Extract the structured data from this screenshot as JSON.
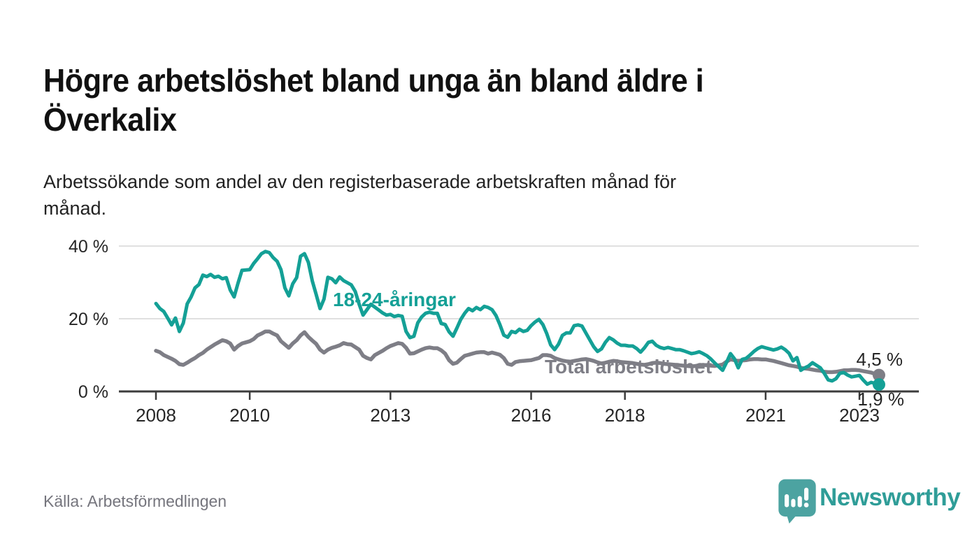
{
  "header": {
    "title": "Högre arbetslöshet bland unga än bland äldre i Överkalix",
    "title_lines": [
      "Högre arbetslöshet bland unga än bland äldre i",
      "Överkalix"
    ],
    "subtitle": "Arbetssökande som andel av den registerbaserade arbetskraften månad för månad.",
    "subtitle_lines": [
      "Arbetssökande som andel av den registerbaserade arbetskraften månad för",
      "månad."
    ]
  },
  "footer": {
    "source": "Källa: Arbetsförmedlingen",
    "brand": "Newsworthy"
  },
  "colors": {
    "young_line": "#14a096",
    "total_line": "#7e7e86",
    "axis": "#3c3c3c",
    "gridline": "#e0e0e0",
    "tick_text": "#262626",
    "logo_icon": "#4ca3a1",
    "logo_text": "#2f9d98"
  },
  "chart_data": {
    "type": "line",
    "title": "Högre arbetslöshet bland unga än bland äldre i Överkalix",
    "subtitle": "Arbetssökande som andel av den registerbaserade arbetskraften månad för månad.",
    "x_unit": "månad (monthly)",
    "x_start": "2008-01",
    "x_end": "2023-06",
    "x_step_months": 1,
    "xticks": [
      2008,
      2010,
      2013,
      2016,
      2018,
      2021,
      2023
    ],
    "yticks": [
      0,
      20,
      40
    ],
    "ytick_labels": [
      "0 %",
      "20 %",
      "40 %"
    ],
    "ylim": [
      0,
      43
    ],
    "grid": "horizontal",
    "legend_position": "inline-labels",
    "series": [
      {
        "name": "18-24-åringar",
        "color": "#14a096",
        "end_label": "1,9 %",
        "end_value": 1.9,
        "values": [
          24.2,
          22.8,
          22.0,
          20.2,
          18.3,
          20.2,
          16.5,
          18.8,
          24.1,
          26.0,
          28.5,
          29.4,
          32.0,
          31.6,
          32.2,
          31.4,
          31.7,
          31.0,
          31.3,
          27.9,
          26.0,
          29.8,
          33.3,
          33.4,
          33.5,
          35.2,
          36.5,
          37.9,
          38.5,
          38.2,
          36.8,
          35.8,
          33.5,
          28.5,
          26.3,
          29.6,
          31.3,
          37.2,
          37.9,
          35.5,
          30.4,
          26.7,
          22.8,
          25.4,
          31.4,
          31.0,
          29.9,
          31.5,
          30.5,
          29.9,
          29.3,
          27.5,
          24.0,
          21.0,
          22.5,
          24.0,
          23.2,
          22.4,
          21.6,
          21.0,
          21.2,
          20.6,
          20.9,
          20.7,
          16.5,
          14.8,
          15.2,
          18.9,
          20.5,
          21.5,
          21.8,
          21.5,
          21.5,
          18.7,
          18.4,
          16.4,
          15.2,
          17.4,
          19.8,
          21.5,
          22.8,
          22.2,
          23.1,
          22.5,
          23.4,
          23.1,
          22.5,
          20.9,
          18.4,
          15.5,
          14.9,
          16.5,
          16.2,
          17.1,
          16.5,
          16.8,
          18.1,
          19.1,
          19.8,
          18.4,
          15.9,
          12.8,
          11.5,
          13.0,
          15.4,
          16.1,
          16.1,
          18.1,
          18.3,
          18.0,
          16.1,
          14.2,
          12.3,
          11.0,
          11.7,
          13.5,
          14.8,
          14.2,
          13.3,
          12.7,
          12.7,
          12.5,
          12.5,
          11.8,
          10.8,
          12.0,
          13.5,
          13.8,
          12.7,
          12.1,
          11.8,
          12.1,
          11.8,
          11.5,
          11.5,
          11.2,
          10.8,
          10.4,
          10.6,
          10.9,
          10.4,
          9.8,
          8.9,
          7.8,
          6.8,
          5.8,
          8.0,
          10.4,
          9.0,
          6.5,
          8.8,
          9.1,
          10.0,
          11.0,
          11.8,
          12.3,
          12.0,
          11.7,
          11.4,
          11.7,
          12.2,
          11.5,
          10.5,
          8.4,
          9.3,
          5.8,
          6.5,
          7.0,
          7.9,
          7.2,
          6.5,
          5.0,
          3.2,
          2.9,
          3.5,
          5.0,
          5.2,
          4.5,
          4.0,
          4.2,
          4.4,
          3.1,
          2.0,
          2.5,
          2.2,
          1.9
        ]
      },
      {
        "name": "Total arbetslöshet",
        "color": "#7e7e86",
        "end_label": "4,5 %",
        "end_value": 4.5,
        "values": [
          11.2,
          10.8,
          10.0,
          9.5,
          9.0,
          8.4,
          7.5,
          7.3,
          7.9,
          8.6,
          9.2,
          10.0,
          10.6,
          11.5,
          12.2,
          12.9,
          13.5,
          14.1,
          13.8,
          13.2,
          11.5,
          12.5,
          13.2,
          13.5,
          13.8,
          14.4,
          15.4,
          15.9,
          16.5,
          16.5,
          15.9,
          15.4,
          13.8,
          12.9,
          12.0,
          13.2,
          14.1,
          15.4,
          16.3,
          15.0,
          14.0,
          13.1,
          11.5,
          10.7,
          11.5,
          12.0,
          12.3,
          12.7,
          13.3,
          13.0,
          12.9,
          12.2,
          11.5,
          9.8,
          9.2,
          8.8,
          10.0,
          10.6,
          11.2,
          11.9,
          12.5,
          12.9,
          13.3,
          13.1,
          12.0,
          10.4,
          10.5,
          11.0,
          11.5,
          11.9,
          12.1,
          11.9,
          11.9,
          11.3,
          10.4,
          8.6,
          7.6,
          7.9,
          8.9,
          9.8,
          10.1,
          10.4,
          10.7,
          10.8,
          10.8,
          10.4,
          10.7,
          10.4,
          10.1,
          9.2,
          7.6,
          7.3,
          8.1,
          8.3,
          8.4,
          8.5,
          8.6,
          8.9,
          9.2,
          10.0,
          10.0,
          9.8,
          9.2,
          8.8,
          8.5,
          8.3,
          8.2,
          8.4,
          8.6,
          8.8,
          8.9,
          8.7,
          8.4,
          8.0,
          7.7,
          7.9,
          8.2,
          8.4,
          8.3,
          8.1,
          8.0,
          7.9,
          7.8,
          7.6,
          7.4,
          7.3,
          7.5,
          7.8,
          7.9,
          7.8,
          7.6,
          7.5,
          7.4,
          7.3,
          7.2,
          7.1,
          7.0,
          6.9,
          7.0,
          7.2,
          7.3,
          7.2,
          7.1,
          7.0,
          7.2,
          7.4,
          8.2,
          8.8,
          8.6,
          8.4,
          8.5,
          8.6,
          8.8,
          8.9,
          8.9,
          8.8,
          8.8,
          8.6,
          8.4,
          8.1,
          7.8,
          7.5,
          7.2,
          7.0,
          6.8,
          6.5,
          6.3,
          6.2,
          6.0,
          5.8,
          5.7,
          5.4,
          5.3,
          5.3,
          5.4,
          5.6,
          5.8,
          5.8,
          5.9,
          5.9,
          5.8,
          5.6,
          5.4,
          5.2,
          4.8,
          4.5
        ]
      }
    ]
  }
}
